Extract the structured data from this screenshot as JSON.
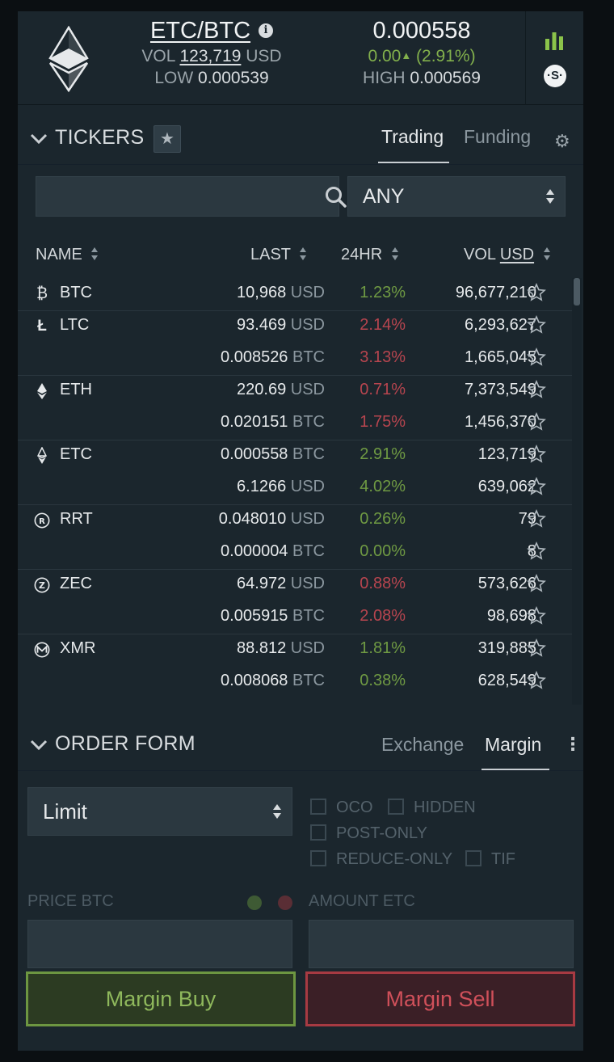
{
  "header": {
    "pair": "ETC/BTC",
    "vol_label": "VOL",
    "vol_value": "123,719",
    "vol_unit": "USD",
    "low_label": "LOW",
    "low_value": "0.000539",
    "last_price": "0.000558",
    "change_abs": "0.00",
    "change_pct": "(2.91%)",
    "high_label": "HIGH",
    "high_value": "0.000569",
    "colors": {
      "positive": "#82b04c",
      "negative": "#b7454f"
    }
  },
  "tickers": {
    "title": "TICKERS",
    "tabs": [
      "Trading",
      "Funding"
    ],
    "active_tab": "Trading",
    "search_placeholder": "",
    "filter_value": "ANY",
    "filter_options": [
      "ANY"
    ],
    "columns": {
      "name": "NAME",
      "last": "LAST",
      "change": "24HR",
      "vol": "VOL",
      "vol_unit": "USD"
    },
    "icons": [
      "bitcoin-icon",
      "litecoin-icon",
      "ethereum-icon",
      "ethereum-classic-icon",
      "rrt-icon",
      "zcash-icon",
      "monero-icon"
    ],
    "rows": [
      {
        "name": "BTC",
        "icon": "bitcoin-icon",
        "last": "10,968",
        "unit": "USD",
        "change": "1.23%",
        "dir": "pos",
        "vol": "96,677,210"
      },
      {
        "name": "LTC",
        "icon": "litecoin-icon",
        "last": "93.469",
        "unit": "USD",
        "change": "2.14%",
        "dir": "neg",
        "vol": "6,293,627"
      },
      {
        "name": "",
        "icon": "",
        "last": "0.008526",
        "unit": "BTC",
        "change": "3.13%",
        "dir": "neg",
        "vol": "1,665,045"
      },
      {
        "name": "ETH",
        "icon": "ethereum-icon",
        "last": "220.69",
        "unit": "USD",
        "change": "0.71%",
        "dir": "neg",
        "vol": "7,373,549"
      },
      {
        "name": "",
        "icon": "",
        "last": "0.020151",
        "unit": "BTC",
        "change": "1.75%",
        "dir": "neg",
        "vol": "1,456,370"
      },
      {
        "name": "ETC",
        "icon": "ethereum-classic-icon",
        "last": "0.000558",
        "unit": "BTC",
        "change": "2.91%",
        "dir": "pos",
        "vol": "123,719"
      },
      {
        "name": "",
        "icon": "",
        "last": "6.1266",
        "unit": "USD",
        "change": "4.02%",
        "dir": "pos",
        "vol": "639,062"
      },
      {
        "name": "RRT",
        "icon": "rrt-icon",
        "last": "0.048010",
        "unit": "USD",
        "change": "0.26%",
        "dir": "pos",
        "vol": "79"
      },
      {
        "name": "",
        "icon": "",
        "last": "0.000004",
        "unit": "BTC",
        "change": "0.00%",
        "dir": "pos",
        "vol": "8"
      },
      {
        "name": "ZEC",
        "icon": "zcash-icon",
        "last": "64.972",
        "unit": "USD",
        "change": "0.88%",
        "dir": "neg",
        "vol": "573,626"
      },
      {
        "name": "",
        "icon": "",
        "last": "0.005915",
        "unit": "BTC",
        "change": "2.08%",
        "dir": "neg",
        "vol": "98,698"
      },
      {
        "name": "XMR",
        "icon": "monero-icon",
        "last": "88.812",
        "unit": "USD",
        "change": "1.81%",
        "dir": "pos",
        "vol": "319,885"
      },
      {
        "name": "",
        "icon": "",
        "last": "0.008068",
        "unit": "BTC",
        "change": "0.38%",
        "dir": "pos",
        "vol": "628,549"
      }
    ]
  },
  "order_form": {
    "title": "ORDER FORM",
    "tabs": [
      "Exchange",
      "Margin"
    ],
    "active_tab": "Margin",
    "order_type": "Limit",
    "checkboxes": {
      "oco": "OCO",
      "hidden": "HIDDEN",
      "post_only": "POST-ONLY",
      "reduce_only": "REDUCE-ONLY",
      "tif": "TIF"
    },
    "price_label": "PRICE BTC",
    "amount_label": "AMOUNT ETC",
    "price_value": "",
    "amount_value": "",
    "buy_label": "Margin Buy",
    "sell_label": "Margin Sell",
    "colors": {
      "buy": "#6d9641",
      "sell": "#a73a42"
    }
  }
}
